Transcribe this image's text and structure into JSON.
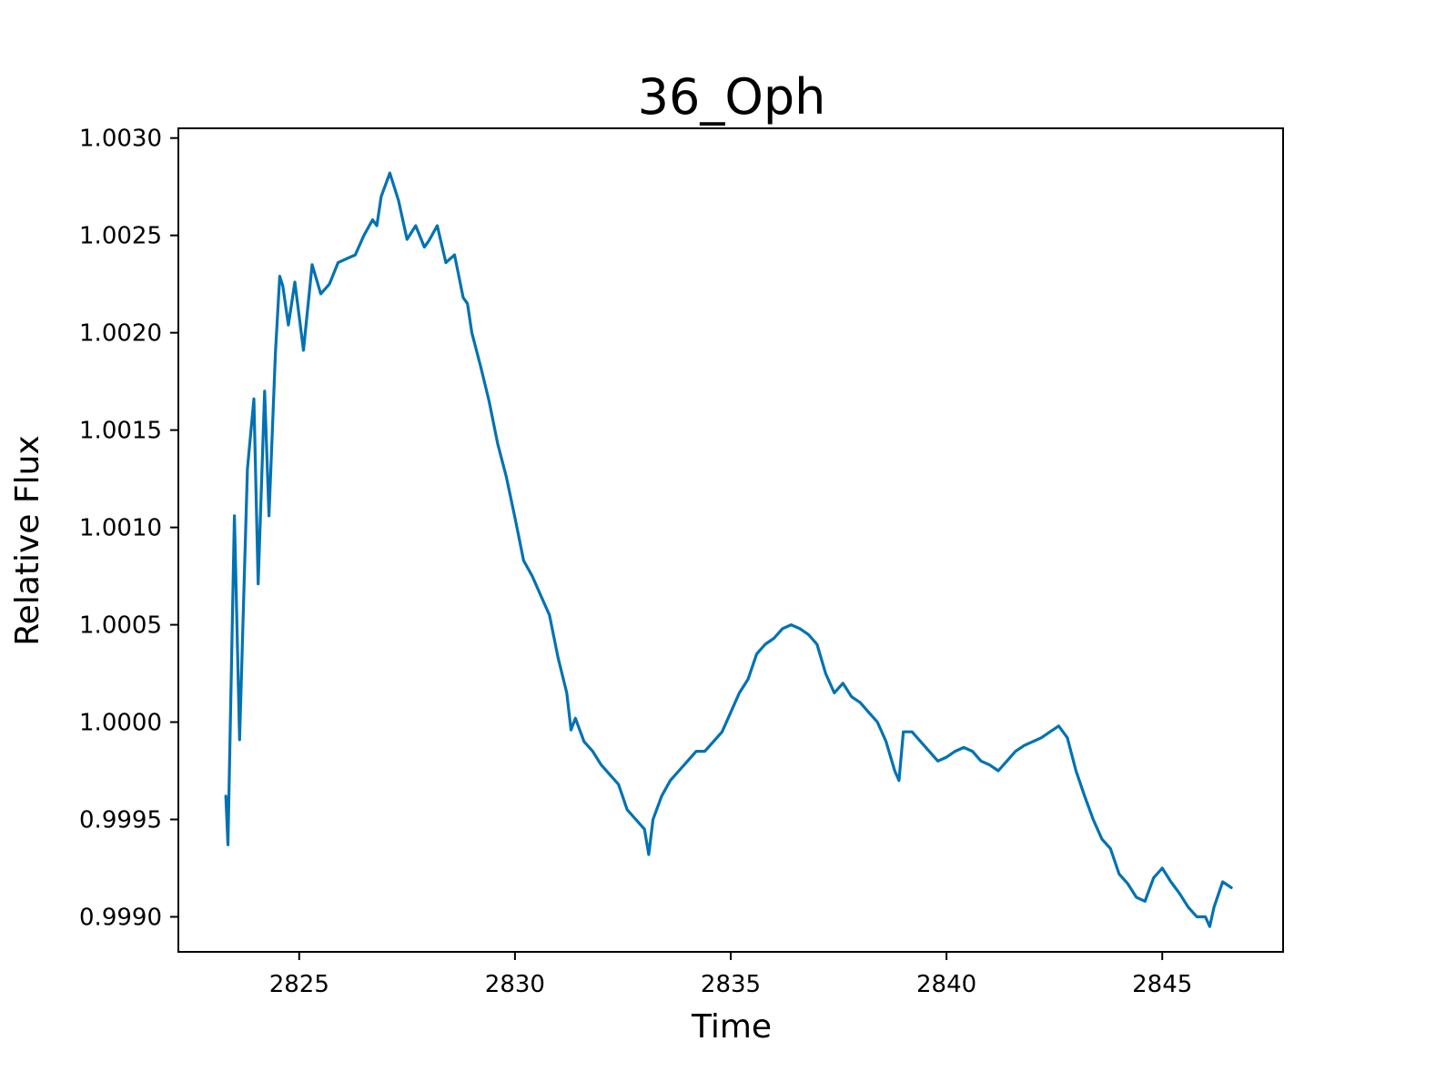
{
  "chart_data": {
    "type": "line",
    "title": "36_Oph",
    "xlabel": "Time",
    "ylabel": "Relative Flux",
    "xlim": [
      2822.2,
      2847.8
    ],
    "ylim": [
      0.99882,
      1.00305
    ],
    "x_ticks": [
      2825,
      2830,
      2835,
      2840,
      2845
    ],
    "x_tick_labels": [
      "2825",
      "2830",
      "2835",
      "2840",
      "2845"
    ],
    "y_ticks": [
      0.999,
      0.9995,
      1.0,
      1.0005,
      1.001,
      1.0015,
      1.002,
      1.0025,
      1.003
    ],
    "y_tick_labels": [
      "0.9990",
      "0.9995",
      "1.0000",
      "1.0005",
      "1.0010",
      "1.0015",
      "1.0020",
      "1.0025",
      "1.0030"
    ],
    "grid": false,
    "series_color": "#0072b2",
    "series": [
      {
        "x": [
          2823.3,
          2823.35,
          2823.5,
          2823.62,
          2823.8,
          2823.95,
          2824.05,
          2824.2,
          2824.3,
          2824.45,
          2824.55,
          2824.62,
          2824.75,
          2824.9,
          2825.1,
          2825.3,
          2825.5,
          2825.7,
          2825.9,
          2826.1,
          2826.3,
          2826.5,
          2826.7,
          2826.8,
          2826.9,
          2827.1,
          2827.3,
          2827.5,
          2827.7,
          2827.9,
          2828.0,
          2828.2,
          2828.4,
          2828.6,
          2828.8,
          2828.9,
          2829.0,
          2829.2,
          2829.4,
          2829.6,
          2829.8,
          2830.0,
          2830.2,
          2830.4,
          2830.6,
          2830.8,
          2831.0,
          2831.2,
          2831.3,
          2831.4,
          2831.6,
          2831.8,
          2832.0,
          2832.2,
          2832.4,
          2832.6,
          2832.8,
          2833.0,
          2833.1,
          2833.2,
          2833.4,
          2833.6,
          2833.8,
          2834.0,
          2834.2,
          2834.4,
          2834.6,
          2834.8,
          2835.0,
          2835.2,
          2835.4,
          2835.6,
          2835.8,
          2836.0,
          2836.2,
          2836.4,
          2836.6,
          2836.8,
          2837.0,
          2837.2,
          2837.4,
          2837.6,
          2837.8,
          2838.0,
          2838.2,
          2838.4,
          2838.6,
          2838.8,
          2838.9,
          2839.0,
          2839.2,
          2839.4,
          2839.6,
          2839.8,
          2840.0,
          2840.2,
          2840.4,
          2840.6,
          2840.8,
          2841.0,
          2841.2,
          2841.4,
          2841.6,
          2841.8,
          2842.0,
          2842.2,
          2842.4,
          2842.6,
          2842.8,
          2843.0,
          2843.2,
          2843.4,
          2843.6,
          2843.8,
          2844.0,
          2844.2,
          2844.4,
          2844.6,
          2844.8,
          2845.0,
          2845.2,
          2845.4,
          2845.6,
          2845.8,
          2846.0,
          2846.1,
          2846.2,
          2846.4,
          2846.6
        ],
        "y": [
          0.99962,
          0.99937,
          1.00106,
          0.99991,
          1.0013,
          1.00166,
          1.00071,
          1.0017,
          1.00106,
          1.0019,
          1.00229,
          1.00224,
          1.00204,
          1.00226,
          1.00191,
          1.00235,
          1.0022,
          1.00225,
          1.00236,
          1.00238,
          1.0024,
          1.0025,
          1.00258,
          1.00255,
          1.0027,
          1.00282,
          1.00268,
          1.00248,
          1.00255,
          1.00244,
          1.00247,
          1.00255,
          1.00236,
          1.0024,
          1.00218,
          1.00215,
          1.002,
          1.00183,
          1.00165,
          1.00143,
          1.00126,
          1.00105,
          1.00083,
          1.00075,
          1.00065,
          1.00055,
          1.00033,
          1.00015,
          0.99996,
          1.00002,
          0.9999,
          0.99985,
          0.99978,
          0.99973,
          0.99968,
          0.99955,
          0.9995,
          0.99945,
          0.99932,
          0.9995,
          0.99962,
          0.9997,
          0.99975,
          0.9998,
          0.99985,
          0.99985,
          0.9999,
          0.99995,
          1.00005,
          1.00015,
          1.00022,
          1.00035,
          1.0004,
          1.00043,
          1.00048,
          1.0005,
          1.00048,
          1.00045,
          1.0004,
          1.00025,
          1.00015,
          1.0002,
          1.00013,
          1.0001,
          1.00005,
          1.0,
          0.9999,
          0.99975,
          0.9997,
          0.99995,
          0.99995,
          0.9999,
          0.99985,
          0.9998,
          0.99982,
          0.99985,
          0.99987,
          0.99985,
          0.9998,
          0.99978,
          0.99975,
          0.9998,
          0.99985,
          0.99988,
          0.9999,
          0.99992,
          0.99995,
          0.99998,
          0.99992,
          0.99975,
          0.99962,
          0.9995,
          0.9994,
          0.99935,
          0.99922,
          0.99917,
          0.9991,
          0.99908,
          0.9992,
          0.99925,
          0.99918,
          0.99912,
          0.99905,
          0.999,
          0.999,
          0.99895,
          0.99905,
          0.99918,
          0.99915
        ]
      }
    ]
  }
}
